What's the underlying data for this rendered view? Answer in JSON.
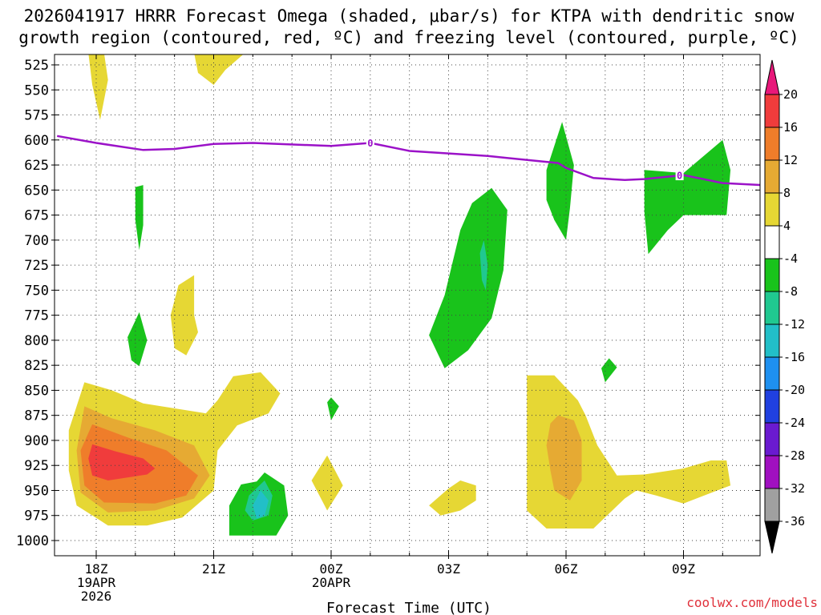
{
  "chart_data": {
    "type": "time-height contour (filled)",
    "title_line1": "2026041917 HRRR Forecast Omega (shaded, μbar/s) for KTPA with dendritic snow",
    "title_line2": "growth region (contoured, red, ºC) and freezing level (contoured, purple, ºC)",
    "xlabel": "Forecast Time (UTC)",
    "credit": "coolwx.com/models",
    "x_range_hours": [
      -1.0,
      17.0
    ],
    "y_range_hPa": [
      515,
      1010
    ],
    "y_ticks_hPa": [
      525,
      550,
      575,
      600,
      625,
      650,
      675,
      700,
      725,
      750,
      775,
      800,
      825,
      850,
      875,
      900,
      925,
      950,
      975,
      1000
    ],
    "x_ticks": [
      {
        "h": 0,
        "lines": [
          "18Z",
          "19APR",
          "2026"
        ]
      },
      {
        "h": 3,
        "lines": [
          "21Z"
        ]
      },
      {
        "h": 6,
        "lines": [
          "00Z",
          "20APR"
        ]
      },
      {
        "h": 9,
        "lines": [
          "03Z"
        ]
      },
      {
        "h": 12,
        "lines": [
          "06Z"
        ]
      },
      {
        "h": 15,
        "lines": [
          "09Z"
        ]
      }
    ],
    "colorbar": {
      "labels": [
        "20",
        "16",
        "12",
        "8",
        "4",
        "-4",
        "-8",
        "-12",
        "-16",
        "-20",
        "-24",
        "-28",
        "-32",
        "-36"
      ],
      "colors": {
        "gt20": "#e8187a",
        "16_20": "#f03c3c",
        "12_16": "#ef7d2a",
        "8_12": "#e6aa33",
        "4_8": "#e6d734",
        "-4_4": "#ffffff",
        "-8_-4": "#19c31b",
        "-12_-8": "#20c890",
        "-16_-12": "#22bfc8",
        "-20_-16": "#1e90f0",
        "-24_-20": "#2040e0",
        "-28_-24": "#6a1ad0",
        "-32_-28": "#a010c0",
        "-36_-32": "#a0a0a0",
        "lt-36": "#000000"
      }
    },
    "freezing_level": {
      "label": "0",
      "points": [
        [
          -1.0,
          596
        ],
        [
          0.0,
          603
        ],
        [
          1.2,
          610
        ],
        [
          2.0,
          609
        ],
        [
          3.0,
          604
        ],
        [
          4.0,
          603
        ],
        [
          6.0,
          606
        ],
        [
          7.0,
          603
        ],
        [
          8.0,
          611
        ],
        [
          10.0,
          616
        ],
        [
          11.8,
          623
        ],
        [
          12.0,
          628
        ],
        [
          12.7,
          638
        ],
        [
          13.5,
          640
        ],
        [
          14.0,
          639
        ],
        [
          15.0,
          635
        ],
        [
          16.0,
          643
        ],
        [
          17.0,
          645
        ]
      ],
      "label_positions_h": [
        7.0,
        14.9
      ]
    },
    "ground_pressure_hPa": 1015,
    "regions": [
      {
        "id": "pos-4-525-a",
        "bin": "4_8",
        "points": [
          [
            -0.2,
            513
          ],
          [
            0.2,
            513
          ],
          [
            0.3,
            540
          ],
          [
            0.1,
            580
          ],
          [
            -0.1,
            545
          ]
        ]
      },
      {
        "id": "pos-4-525-b",
        "bin": "4_8",
        "points": [
          [
            2.5,
            513
          ],
          [
            3.8,
            513
          ],
          [
            3.3,
            530
          ],
          [
            3.0,
            545
          ],
          [
            2.6,
            533
          ]
        ]
      },
      {
        "id": "pos-4-low-left",
        "bin": "4_8",
        "points": [
          [
            -0.3,
            842
          ],
          [
            0.4,
            850
          ],
          [
            1.2,
            863
          ],
          [
            2.8,
            873
          ],
          [
            3.1,
            860
          ],
          [
            3.5,
            836
          ],
          [
            4.2,
            832
          ],
          [
            4.7,
            853
          ],
          [
            4.4,
            873
          ],
          [
            3.6,
            885
          ],
          [
            3.1,
            910
          ],
          [
            3.0,
            950
          ],
          [
            2.2,
            977
          ],
          [
            1.3,
            985
          ],
          [
            0.3,
            985
          ],
          [
            -0.5,
            965
          ],
          [
            -0.7,
            930
          ],
          [
            -0.7,
            890
          ]
        ]
      },
      {
        "id": "pos-8-low-left",
        "bin": "8_12",
        "points": [
          [
            -0.3,
            866
          ],
          [
            0.4,
            878
          ],
          [
            1.5,
            890
          ],
          [
            2.5,
            905
          ],
          [
            2.9,
            935
          ],
          [
            2.5,
            958
          ],
          [
            1.5,
            970
          ],
          [
            0.3,
            972
          ],
          [
            -0.4,
            952
          ],
          [
            -0.5,
            910
          ]
        ]
      },
      {
        "id": "pos-12-low-left",
        "bin": "12_16",
        "points": [
          [
            -0.1,
            884
          ],
          [
            0.8,
            897
          ],
          [
            1.8,
            910
          ],
          [
            2.6,
            935
          ],
          [
            2.3,
            955
          ],
          [
            1.5,
            963
          ],
          [
            0.2,
            962
          ],
          [
            -0.3,
            945
          ],
          [
            -0.4,
            910
          ]
        ]
      },
      {
        "id": "pos-16-low-left",
        "bin": "16_20",
        "points": [
          [
            -0.1,
            904
          ],
          [
            0.5,
            911
          ],
          [
            1.2,
            918
          ],
          [
            1.5,
            928
          ],
          [
            1.3,
            934
          ],
          [
            0.3,
            940
          ],
          [
            -0.1,
            935
          ],
          [
            -0.2,
            918
          ]
        ]
      },
      {
        "id": "pos-4-upper-left",
        "bin": "4_8",
        "points": [
          [
            1.9,
            775
          ],
          [
            2.1,
            745
          ],
          [
            2.5,
            735
          ],
          [
            2.5,
            775
          ],
          [
            2.6,
            792
          ],
          [
            2.3,
            815
          ],
          [
            2.0,
            808
          ]
        ]
      },
      {
        "id": "pos-4-mid",
        "bin": "4_8",
        "points": [
          [
            5.5,
            940
          ],
          [
            5.9,
            915
          ],
          [
            6.3,
            945
          ],
          [
            5.9,
            970
          ]
        ]
      },
      {
        "id": "pos-4-mid2",
        "bin": "4_8",
        "points": [
          [
            8.5,
            965
          ],
          [
            9.0,
            948
          ],
          [
            9.3,
            940
          ],
          [
            9.7,
            945
          ],
          [
            9.7,
            960
          ],
          [
            9.3,
            970
          ],
          [
            8.8,
            975
          ]
        ]
      },
      {
        "id": "pos-4-right",
        "bin": "4_8",
        "points": [
          [
            11.0,
            835
          ],
          [
            11.7,
            835
          ],
          [
            12.3,
            860
          ],
          [
            12.5,
            875
          ],
          [
            12.8,
            905
          ],
          [
            13.3,
            935
          ],
          [
            14.0,
            934
          ],
          [
            15.0,
            928
          ],
          [
            15.7,
            920
          ],
          [
            16.1,
            920
          ],
          [
            16.2,
            945
          ],
          [
            15.0,
            963
          ],
          [
            14.3,
            955
          ],
          [
            13.8,
            950
          ],
          [
            13.5,
            958
          ],
          [
            12.7,
            988
          ],
          [
            11.5,
            988
          ],
          [
            11.0,
            970
          ],
          [
            11.0,
            900
          ]
        ]
      },
      {
        "id": "pos-8-right",
        "bin": "8_12",
        "points": [
          [
            11.6,
            883
          ],
          [
            11.8,
            875
          ],
          [
            12.2,
            880
          ],
          [
            12.4,
            900
          ],
          [
            12.4,
            940
          ],
          [
            12.1,
            960
          ],
          [
            11.7,
            950
          ],
          [
            11.6,
            930
          ],
          [
            11.5,
            905
          ]
        ]
      },
      {
        "id": "neg-4-a",
        "bin": "-8_-4",
        "points": [
          [
            1.0,
            647
          ],
          [
            1.2,
            645
          ],
          [
            1.2,
            685
          ],
          [
            1.1,
            710
          ],
          [
            1.0,
            680
          ]
        ]
      },
      {
        "id": "neg-4-b",
        "bin": "-8_-4",
        "points": [
          [
            0.8,
            797
          ],
          [
            1.1,
            772
          ],
          [
            1.3,
            800
          ],
          [
            1.1,
            826
          ],
          [
            0.9,
            820
          ]
        ]
      },
      {
        "id": "neg-4-c",
        "bin": "-8_-4",
        "points": [
          [
            3.4,
            965
          ],
          [
            3.7,
            944
          ],
          [
            4.1,
            941
          ],
          [
            4.3,
            932
          ],
          [
            4.8,
            945
          ],
          [
            4.9,
            975
          ],
          [
            4.6,
            995
          ],
          [
            3.4,
            995
          ]
        ]
      },
      {
        "id": "neg-8-c",
        "bin": "-12_-8",
        "points": [
          [
            3.9,
            955
          ],
          [
            4.3,
            940
          ],
          [
            4.5,
            955
          ],
          [
            4.4,
            975
          ],
          [
            4.0,
            980
          ],
          [
            3.8,
            970
          ]
        ]
      },
      {
        "id": "neg-12-c",
        "bin": "-16_-12",
        "points": [
          [
            4.0,
            965
          ],
          [
            4.2,
            950
          ],
          [
            4.4,
            960
          ],
          [
            4.3,
            975
          ],
          [
            4.1,
            978
          ]
        ]
      },
      {
        "id": "neg-4-d",
        "bin": "-8_-4",
        "points": [
          [
            5.9,
            862
          ],
          [
            6.0,
            857
          ],
          [
            6.2,
            866
          ],
          [
            6.0,
            880
          ]
        ]
      },
      {
        "id": "neg-4-e",
        "bin": "-8_-4",
        "points": [
          [
            8.5,
            795
          ],
          [
            8.9,
            755
          ],
          [
            9.3,
            690
          ],
          [
            9.6,
            663
          ],
          [
            10.1,
            648
          ],
          [
            10.5,
            670
          ],
          [
            10.4,
            730
          ],
          [
            10.1,
            778
          ],
          [
            9.5,
            810
          ],
          [
            8.9,
            828
          ]
        ]
      },
      {
        "id": "neg-8-e",
        "bin": "-12_-8",
        "points": [
          [
            9.8,
            713
          ],
          [
            9.9,
            700
          ],
          [
            10.0,
            725
          ],
          [
            9.95,
            750
          ],
          [
            9.85,
            740
          ]
        ]
      },
      {
        "id": "neg-4-f",
        "bin": "-8_-4",
        "points": [
          [
            11.5,
            630
          ],
          [
            11.9,
            582
          ],
          [
            12.2,
            625
          ],
          [
            12.1,
            668
          ],
          [
            12.0,
            700
          ],
          [
            11.7,
            680
          ],
          [
            11.5,
            660
          ]
        ]
      },
      {
        "id": "neg-4-g",
        "bin": "-8_-4",
        "points": [
          [
            12.9,
            828
          ],
          [
            13.1,
            818
          ],
          [
            13.3,
            827
          ],
          [
            13.0,
            842
          ]
        ]
      },
      {
        "id": "neg-4-h",
        "bin": "-8_-4",
        "points": [
          [
            14.0,
            630
          ],
          [
            15.0,
            633
          ],
          [
            16.0,
            600
          ],
          [
            16.2,
            630
          ],
          [
            16.1,
            675
          ],
          [
            15.0,
            675
          ],
          [
            14.6,
            690
          ],
          [
            14.1,
            714
          ],
          [
            14.0,
            672
          ]
        ]
      }
    ]
  }
}
